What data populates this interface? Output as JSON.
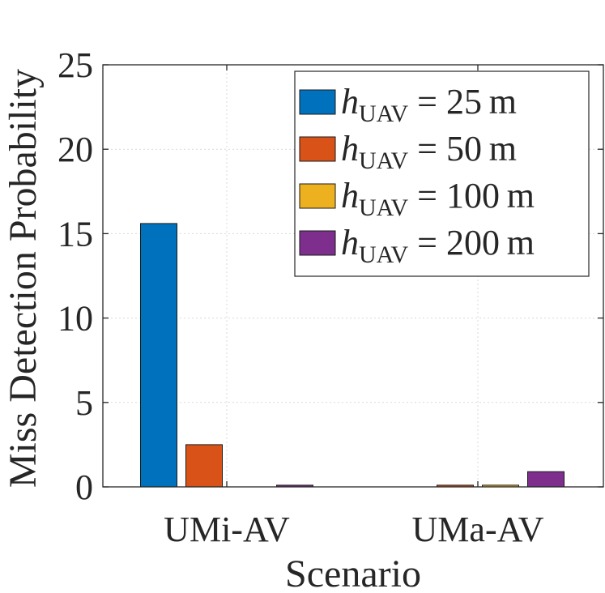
{
  "chart_data": {
    "type": "bar",
    "title": "",
    "xlabel": "Scenario",
    "ylabel": "Miss Detection Probability",
    "categories": [
      "UMi-AV",
      "UMa-AV"
    ],
    "ylim": [
      0,
      25
    ],
    "yticks": [
      "0",
      "5",
      "10",
      "15",
      "20",
      "25"
    ],
    "grid": true,
    "legend_position": "top-right",
    "series": [
      {
        "name": "h_UAV = 25 m",
        "symbol": "h",
        "subscript": "UAV",
        "equals": "=",
        "value_text": "25",
        "unit": "m",
        "color": "#0072BD",
        "values": [
          15.6,
          0.0
        ]
      },
      {
        "name": "h_UAV = 50 m",
        "symbol": "h",
        "subscript": "UAV",
        "equals": "=",
        "value_text": "50",
        "unit": "m",
        "color": "#D95319",
        "values": [
          2.5,
          0.1
        ]
      },
      {
        "name": "h_UAV = 100 m",
        "symbol": "h",
        "subscript": "UAV",
        "equals": "=",
        "value_text": "100",
        "unit": "m",
        "color": "#EDB120",
        "values": [
          0.0,
          0.1
        ]
      },
      {
        "name": "h_UAV = 200 m",
        "symbol": "h",
        "subscript": "UAV",
        "equals": "=",
        "value_text": "200",
        "unit": "m",
        "color": "#7E2F8E",
        "values": [
          0.1,
          0.9
        ]
      }
    ]
  }
}
